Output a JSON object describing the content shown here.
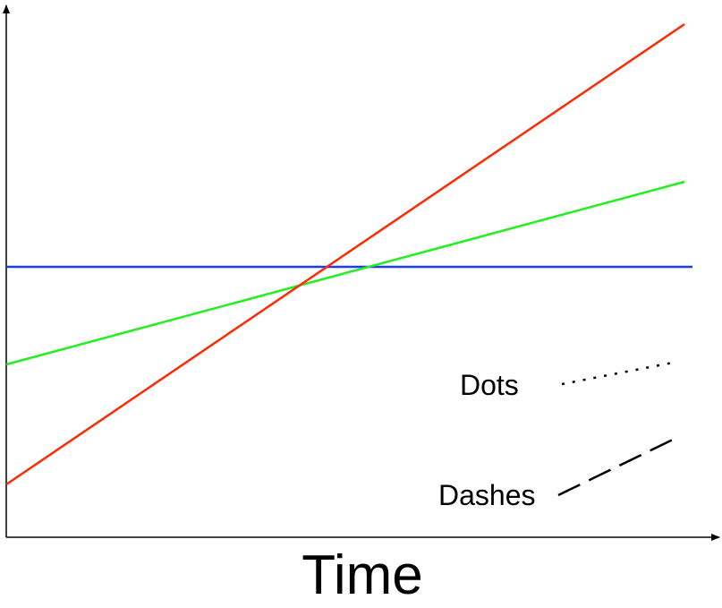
{
  "diagram": {
    "xlabel": "Time",
    "legend": [
      {
        "label": "Dots",
        "style": "dotted",
        "color": "#000000"
      },
      {
        "label": "Dashes",
        "style": "dashed",
        "color": "#000000"
      }
    ],
    "lines": [
      {
        "name": "blue-line",
        "color": "#1a3cff",
        "trend": "flat"
      },
      {
        "name": "green-line",
        "color": "#22ee22",
        "trend": "moderate increase"
      },
      {
        "name": "red-line",
        "color": "#ff2a00",
        "trend": "steep increase"
      }
    ],
    "axis_color": "#000000"
  }
}
